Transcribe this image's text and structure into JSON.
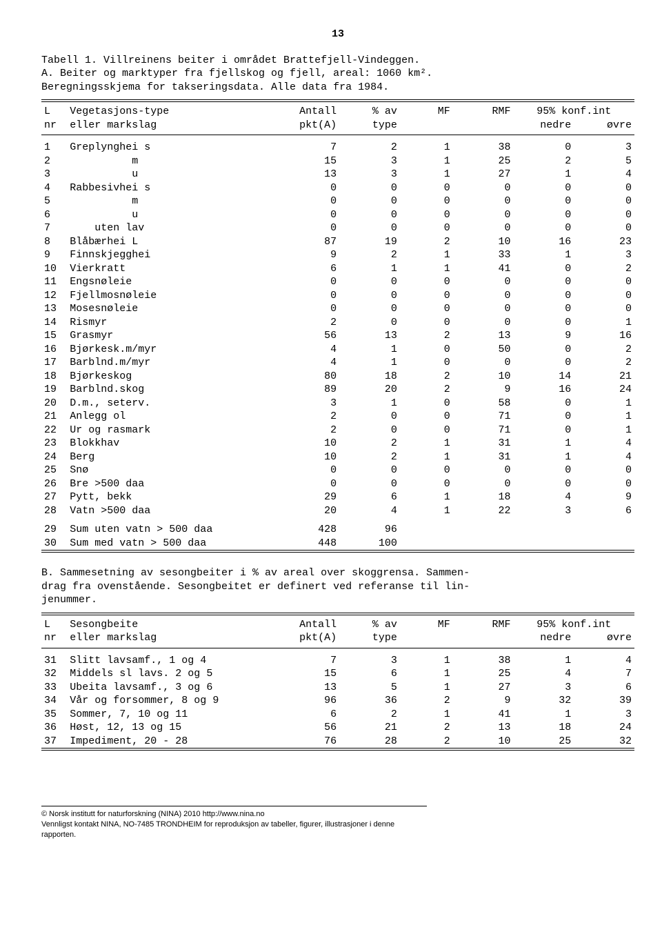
{
  "pageNumber": "13",
  "sectionA": {
    "caption": [
      "Tabell 1. Villreinens beiter i området Brattefjell-Vindeggen.",
      "A. Beiter og marktyper fra fjellskog og fjell, areal: 1060 km².",
      "Beregningsskjema for takseringsdata.  Alle data fra 1984."
    ],
    "header": {
      "c1l1": "L",
      "c2l1": "Vegetasjons-type",
      "c3l1": "Antall",
      "c4l1": "% av",
      "c5l1": "MF",
      "c6l1": "RMF",
      "c7l1": "95% konf.int",
      "c1l2": "nr",
      "c2l2": "eller markslag",
      "c3l2": "pkt(A)",
      "c4l2": "type",
      "c7l2a": "nedre",
      "c7l2b": "øvre"
    },
    "rows": [
      {
        "nr": "1",
        "label": "Greplynghei s",
        "a": "7",
        "b": "2",
        "c": "1",
        "d": "38",
        "e": "0",
        "f": "3"
      },
      {
        "nr": "2",
        "label": "          m",
        "a": "15",
        "b": "3",
        "c": "1",
        "d": "25",
        "e": "2",
        "f": "5"
      },
      {
        "nr": "3",
        "label": "          u",
        "a": "13",
        "b": "3",
        "c": "1",
        "d": "27",
        "e": "1",
        "f": "4"
      },
      {
        "nr": "4",
        "label": "Rabbesivhei s",
        "a": "0",
        "b": "0",
        "c": "0",
        "d": "0",
        "e": "0",
        "f": "0"
      },
      {
        "nr": "5",
        "label": "          m",
        "a": "0",
        "b": "0",
        "c": "0",
        "d": "0",
        "e": "0",
        "f": "0"
      },
      {
        "nr": "6",
        "label": "          u",
        "a": "0",
        "b": "0",
        "c": "0",
        "d": "0",
        "e": "0",
        "f": "0"
      },
      {
        "nr": "7",
        "label": "    uten lav",
        "a": "0",
        "b": "0",
        "c": "0",
        "d": "0",
        "e": "0",
        "f": "0"
      },
      {
        "nr": "8",
        "label": "Blåbærhei L",
        "a": "87",
        "b": "19",
        "c": "2",
        "d": "10",
        "e": "16",
        "f": "23"
      },
      {
        "nr": "9",
        "label": "Finnskjegghei",
        "a": "9",
        "b": "2",
        "c": "1",
        "d": "33",
        "e": "1",
        "f": "3"
      },
      {
        "nr": "10",
        "label": "Vierkratt",
        "a": "6",
        "b": "1",
        "c": "1",
        "d": "41",
        "e": "0",
        "f": "2"
      },
      {
        "nr": "11",
        "label": "Engsnøleie",
        "a": "0",
        "b": "0",
        "c": "0",
        "d": "0",
        "e": "0",
        "f": "0"
      },
      {
        "nr": "12",
        "label": "Fjellmosnøleie",
        "a": "0",
        "b": "0",
        "c": "0",
        "d": "0",
        "e": "0",
        "f": "0"
      },
      {
        "nr": "13",
        "label": "Mosesnøleie",
        "a": "0",
        "b": "0",
        "c": "0",
        "d": "0",
        "e": "0",
        "f": "0"
      },
      {
        "nr": "14",
        "label": "Rismyr",
        "a": "2",
        "b": "0",
        "c": "0",
        "d": "0",
        "e": "0",
        "f": "1"
      },
      {
        "nr": "15",
        "label": "Grasmyr",
        "a": "56",
        "b": "13",
        "c": "2",
        "d": "13",
        "e": "9",
        "f": "16"
      },
      {
        "nr": "16",
        "label": "Bjørkesk.m/myr",
        "a": "4",
        "b": "1",
        "c": "0",
        "d": "50",
        "e": "0",
        "f": "2"
      },
      {
        "nr": "17",
        "label": "Barblnd.m/myr",
        "a": "4",
        "b": "1",
        "c": "0",
        "d": "0",
        "e": "0",
        "f": "2"
      },
      {
        "nr": "18",
        "label": "Bjørkeskog",
        "a": "80",
        "b": "18",
        "c": "2",
        "d": "10",
        "e": "14",
        "f": "21"
      },
      {
        "nr": "19",
        "label": "Barblnd.skog",
        "a": "89",
        "b": "20",
        "c": "2",
        "d": "9",
        "e": "16",
        "f": "24"
      },
      {
        "nr": "20",
        "label": "D.m., seterv.",
        "a": "3",
        "b": "1",
        "c": "0",
        "d": "58",
        "e": "0",
        "f": "1"
      },
      {
        "nr": "21",
        "label": "Anlegg ol",
        "a": "2",
        "b": "0",
        "c": "0",
        "d": "71",
        "e": "0",
        "f": "1"
      },
      {
        "nr": "22",
        "label": "Ur og rasmark",
        "a": "2",
        "b": "0",
        "c": "0",
        "d": "71",
        "e": "0",
        "f": "1"
      },
      {
        "nr": "23",
        "label": "Blokkhav",
        "a": "10",
        "b": "2",
        "c": "1",
        "d": "31",
        "e": "1",
        "f": "4"
      },
      {
        "nr": "24",
        "label": "Berg",
        "a": "10",
        "b": "2",
        "c": "1",
        "d": "31",
        "e": "1",
        "f": "4"
      },
      {
        "nr": "25",
        "label": "Snø",
        "a": "0",
        "b": "0",
        "c": "0",
        "d": "0",
        "e": "0",
        "f": "0"
      },
      {
        "nr": "26",
        "label": "Bre >500 daa",
        "a": "0",
        "b": "0",
        "c": "0",
        "d": "0",
        "e": "0",
        "f": "0"
      },
      {
        "nr": "27",
        "label": "Pytt, bekk",
        "a": "29",
        "b": "6",
        "c": "1",
        "d": "18",
        "e": "4",
        "f": "9"
      },
      {
        "nr": "28",
        "label": "Vatn >500 daa",
        "a": "20",
        "b": "4",
        "c": "1",
        "d": "22",
        "e": "3",
        "f": "6"
      }
    ],
    "sums": [
      {
        "nr": "29",
        "label": "Sum uten vatn > 500 daa",
        "a": "428",
        "b": "96"
      },
      {
        "nr": "30",
        "label": "Sum med vatn > 500 daa",
        "a": "448",
        "b": "100"
      }
    ]
  },
  "sectionB": {
    "caption": [
      "B. Sammesetning av sesongbeiter i % av areal over skoggrensa.  Sammen-",
      "drag fra ovenstående.  Sesongbeitet er definert ved referanse til lin-",
      "jenummer."
    ],
    "header": {
      "c1l1": "L",
      "c2l1": "Sesongbeite",
      "c3l1": "Antall",
      "c4l1": "% av",
      "c5l1": "MF",
      "c6l1": "RMF",
      "c7l1": "95% konf.int",
      "c1l2": "nr",
      "c2l2": "eller markslag",
      "c3l2": "pkt(A)",
      "c4l2": "type",
      "c7l2a": "nedre",
      "c7l2b": "øvre"
    },
    "rows": [
      {
        "nr": "31",
        "label": "Slitt lavsamf., 1 og 4",
        "a": "7",
        "b": "3",
        "c": "1",
        "d": "38",
        "e": "1",
        "f": "4"
      },
      {
        "nr": "32",
        "label": "Middels sl lavs. 2 og 5",
        "a": "15",
        "b": "6",
        "c": "1",
        "d": "25",
        "e": "4",
        "f": "7"
      },
      {
        "nr": "33",
        "label": "Ubeita lavsamf., 3 og 6",
        "a": "13",
        "b": "5",
        "c": "1",
        "d": "27",
        "e": "3",
        "f": "6"
      },
      {
        "nr": "34",
        "label": "Vår og forsommer, 8 og 9",
        "a": "96",
        "b": "36",
        "c": "2",
        "d": "9",
        "e": "32",
        "f": "39"
      },
      {
        "nr": "35",
        "label": "Sommer, 7, 10 og 11",
        "a": "6",
        "b": "2",
        "c": "1",
        "d": "41",
        "e": "1",
        "f": "3"
      },
      {
        "nr": "36",
        "label": "Høst, 12, 13 og 15",
        "a": "56",
        "b": "21",
        "c": "2",
        "d": "13",
        "e": "18",
        "f": "24"
      },
      {
        "nr": "37",
        "label": "Impediment, 20 - 28",
        "a": "76",
        "b": "28",
        "c": "2",
        "d": "10",
        "e": "25",
        "f": "32"
      }
    ]
  },
  "footer": {
    "line1": "© Norsk institutt for naturforskning (NINA) 2010 http://www.nina.no",
    "line2": "Vennligst kontakt NINA, NO-7485 TRONDHEIM for reproduksjon av tabeller, figurer, illustrasjoner i denne rapporten."
  },
  "colWidths": {
    "nr": "34px",
    "label": "280px",
    "a": "80px",
    "b": "80px",
    "c": "70px",
    "d": "80px",
    "e": "80px",
    "f": "80px"
  }
}
